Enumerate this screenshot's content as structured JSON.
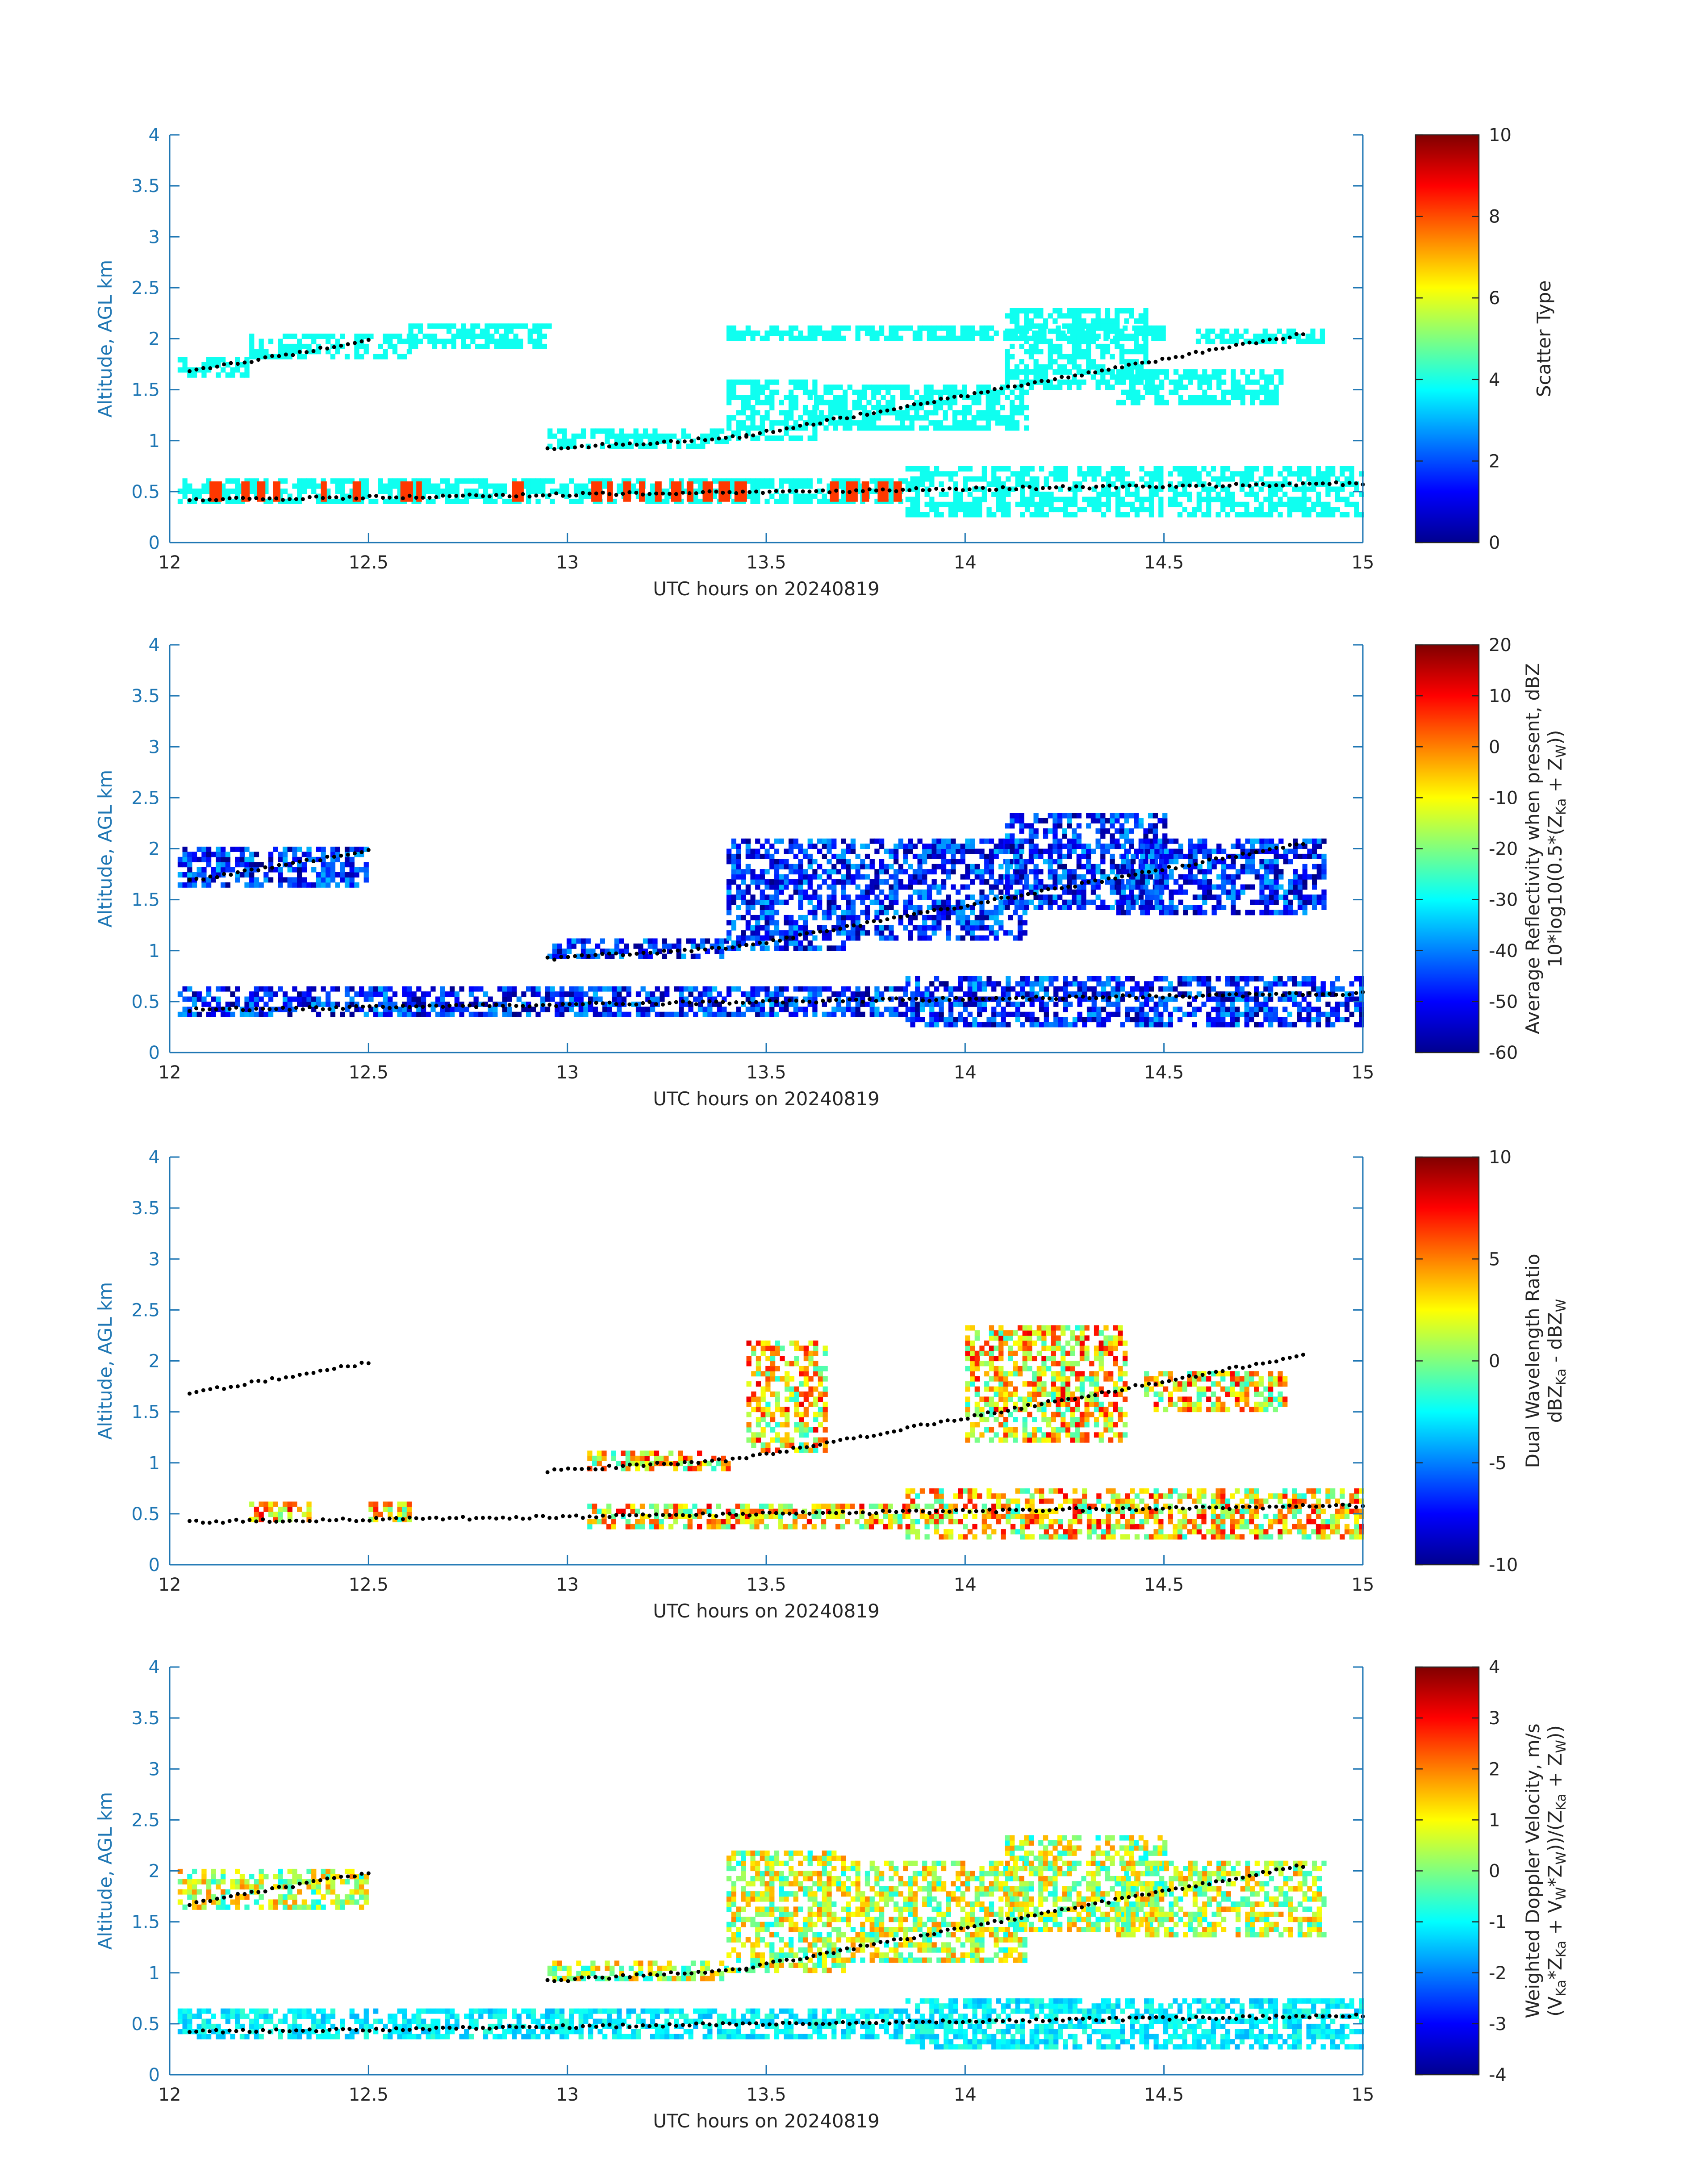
{
  "figure": {
    "background": "#ffffff",
    "axis_color": "#1f77b4",
    "tick_label_color": "#262626"
  },
  "chart_data": [
    {
      "id": "scatter-type",
      "type": "heatmap",
      "title": "",
      "xlabel": "UTC hours on 20240819",
      "ylabel": "Altitude, AGL km",
      "xlim": [
        12,
        15
      ],
      "ylim": [
        0,
        4
      ],
      "xticks": [
        "12",
        "12.5",
        "13",
        "13.5",
        "14",
        "14.5",
        "15"
      ],
      "yticks": [
        "0",
        "0.5",
        "1",
        "1.5",
        "2",
        "2.5",
        "3",
        "3.5",
        "4"
      ],
      "colorbar": {
        "label_lines": [
          "Scatter Type"
        ],
        "range": [
          0,
          10
        ],
        "ticks": [
          "0",
          "2",
          "4",
          "6",
          "8",
          "10"
        ]
      },
      "dominant_value": 3.9,
      "layers": [
        {
          "band": [
            12.02,
            12.2,
            1.62,
            1.8
          ]
        },
        {
          "band": [
            12.2,
            12.6,
            1.8,
            2.02
          ]
        },
        {
          "band": [
            12.6,
            12.95,
            1.9,
            2.1
          ]
        },
        {
          "band": [
            12.95,
            13.4,
            0.92,
            1.08
          ]
        },
        {
          "band": [
            13.4,
            13.62,
            1.0,
            1.6
          ]
        },
        {
          "band": [
            13.4,
            14.5,
            1.98,
            2.1
          ]
        },
        {
          "band": [
            13.62,
            14.15,
            1.1,
            1.55
          ]
        },
        {
          "band": [
            14.1,
            14.45,
            1.5,
            2.25
          ]
        },
        {
          "band": [
            14.38,
            14.8,
            1.35,
            1.7
          ]
        },
        {
          "band": [
            14.58,
            14.9,
            1.95,
            2.08
          ]
        },
        {
          "band": [
            12.02,
            13.85,
            0.38,
            0.62
          ]
        },
        {
          "band": [
            13.85,
            15.0,
            0.25,
            0.72
          ]
        }
      ],
      "secondary_value": 8.2,
      "secondary_band": [
        12.02,
        13.85,
        0.4,
        0.6
      ],
      "detections": [
        {
          "band": [
            12.05,
            12.5,
            1.68,
            1.98
          ]
        },
        {
          "band": [
            12.95,
            13.45,
            0.92,
            1.04
          ]
        },
        {
          "band": [
            13.45,
            14.85,
            1.05,
            2.05
          ]
        },
        {
          "band": [
            12.05,
            15.0,
            0.42,
            0.58
          ]
        }
      ],
      "detection_color": "#000000"
    },
    {
      "id": "avg-reflectivity",
      "type": "heatmap",
      "title": "",
      "xlabel": "UTC hours on 20240819",
      "ylabel": "Altitude, AGL km",
      "xlim": [
        12,
        15
      ],
      "ylim": [
        0,
        4
      ],
      "xticks": [
        "12",
        "12.5",
        "13",
        "13.5",
        "14",
        "14.5",
        "15"
      ],
      "yticks": [
        "0",
        "0.5",
        "1",
        "1.5",
        "2",
        "2.5",
        "3",
        "3.5",
        "4"
      ],
      "colorbar": {
        "label_lines": [
          "Average Reflectivity when present, dBZ",
          "10*log10(0.5*(Z_Ka + Z_W))"
        ],
        "range": [
          -60,
          20
        ],
        "ticks": [
          "-60",
          "-50",
          "-40",
          "-30",
          "-20",
          "-10",
          "0",
          "10",
          "20"
        ]
      },
      "value_range": [
        -60,
        -35
      ],
      "layers": [
        {
          "band": [
            12.02,
            12.5,
            1.62,
            1.98
          ]
        },
        {
          "band": [
            12.95,
            13.4,
            0.92,
            1.1
          ]
        },
        {
          "band": [
            13.4,
            13.7,
            1.0,
            2.1
          ]
        },
        {
          "band": [
            13.7,
            14.15,
            1.1,
            2.1
          ]
        },
        {
          "band": [
            14.1,
            14.5,
            1.4,
            2.3
          ]
        },
        {
          "band": [
            14.38,
            14.9,
            1.35,
            2.1
          ]
        },
        {
          "band": [
            12.02,
            13.85,
            0.35,
            0.65
          ]
        },
        {
          "band": [
            13.85,
            15.0,
            0.25,
            0.75
          ]
        }
      ],
      "detections": [
        {
          "band": [
            12.05,
            12.5,
            1.68,
            1.98
          ]
        },
        {
          "band": [
            12.95,
            13.45,
            0.92,
            1.04
          ]
        },
        {
          "band": [
            13.45,
            14.85,
            1.05,
            2.05
          ]
        },
        {
          "band": [
            12.05,
            15.0,
            0.42,
            0.58
          ]
        }
      ],
      "detection_color": "#000000"
    },
    {
      "id": "dual-wavelength-ratio",
      "type": "heatmap",
      "title": "",
      "xlabel": "UTC hours on 20240819",
      "ylabel": "Altitude, AGL km",
      "xlim": [
        12,
        15
      ],
      "ylim": [
        0,
        4
      ],
      "xticks": [
        "12",
        "12.5",
        "13",
        "13.5",
        "14",
        "14.5",
        "15"
      ],
      "yticks": [
        "0",
        "0.5",
        "1",
        "1.5",
        "2",
        "2.5",
        "3",
        "3.5",
        "4"
      ],
      "colorbar": {
        "label_lines": [
          "Dual Wavelength Ratio",
          "dBZ_Ka - dBZ_W"
        ],
        "range": [
          -10,
          10
        ],
        "ticks": [
          "-10",
          "-5",
          "0",
          "5",
          "10"
        ]
      },
      "value_range": [
        -2,
        8
      ],
      "layers": [
        {
          "band": [
            12.2,
            12.35,
            0.42,
            0.6
          ]
        },
        {
          "band": [
            12.5,
            12.6,
            0.42,
            0.6
          ]
        },
        {
          "band": [
            13.05,
            13.4,
            0.92,
            1.08
          ]
        },
        {
          "band": [
            13.45,
            13.65,
            1.1,
            2.2
          ]
        },
        {
          "band": [
            14.0,
            14.4,
            1.2,
            2.3
          ]
        },
        {
          "band": [
            14.45,
            14.8,
            1.5,
            1.9
          ]
        },
        {
          "band": [
            13.05,
            13.85,
            0.35,
            0.6
          ]
        },
        {
          "band": [
            13.85,
            15.0,
            0.25,
            0.75
          ]
        }
      ],
      "detections": [
        {
          "band": [
            12.05,
            12.5,
            1.68,
            1.98
          ]
        },
        {
          "band": [
            12.95,
            13.45,
            0.92,
            1.04
          ]
        },
        {
          "band": [
            13.45,
            14.85,
            1.05,
            2.05
          ]
        },
        {
          "band": [
            12.05,
            15.0,
            0.42,
            0.58
          ]
        }
      ],
      "detection_color": "#000000"
    },
    {
      "id": "weighted-doppler-velocity",
      "type": "heatmap",
      "title": "",
      "xlabel": "UTC hours on 20240819",
      "ylabel": "Altitude, AGL km",
      "xlim": [
        12,
        15
      ],
      "ylim": [
        0,
        4
      ],
      "xticks": [
        "12",
        "12.5",
        "13",
        "13.5",
        "14",
        "14.5",
        "15"
      ],
      "yticks": [
        "0",
        "0.5",
        "1",
        "1.5",
        "2",
        "2.5",
        "3",
        "3.5",
        "4"
      ],
      "colorbar": {
        "label_lines": [
          "Weighted Doppler Velocity, m/s",
          "(V_Ka*Z_Ka + V_W*Z_W))/(Z_Ka + Z_W))"
        ],
        "range": [
          -4,
          4
        ],
        "ticks": [
          "-4",
          "-3",
          "-2",
          "-1",
          "0",
          "1",
          "2",
          "3",
          "4"
        ]
      },
      "value_range": [
        -1,
        2
      ],
      "layers": [
        {
          "band": [
            12.02,
            12.5,
            1.62,
            1.98
          ]
        },
        {
          "band": [
            12.95,
            13.4,
            0.92,
            1.1
          ]
        },
        {
          "band": [
            13.4,
            13.7,
            1.0,
            2.2
          ]
        },
        {
          "band": [
            13.7,
            14.15,
            1.1,
            2.1
          ]
        },
        {
          "band": [
            14.1,
            14.5,
            1.4,
            2.3
          ]
        },
        {
          "band": [
            14.38,
            14.9,
            1.35,
            2.1
          ]
        }
      ],
      "lower_value_range": [
        -1.6,
        -0.6
      ],
      "lower_layers": [
        {
          "band": [
            12.02,
            13.85,
            0.35,
            0.65
          ]
        },
        {
          "band": [
            13.85,
            15.0,
            0.25,
            0.75
          ]
        }
      ],
      "detections": [
        {
          "band": [
            12.05,
            12.5,
            1.68,
            1.98
          ]
        },
        {
          "band": [
            12.95,
            13.45,
            0.92,
            1.04
          ]
        },
        {
          "band": [
            13.45,
            14.85,
            1.05,
            2.05
          ]
        },
        {
          "band": [
            12.05,
            15.0,
            0.42,
            0.58
          ]
        }
      ],
      "detection_color": "#000000"
    }
  ]
}
